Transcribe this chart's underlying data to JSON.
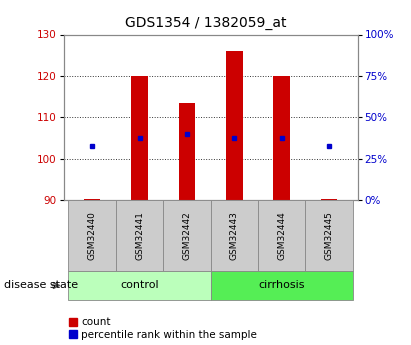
{
  "title": "GDS1354 / 1382059_at",
  "samples": [
    "GSM32440",
    "GSM32441",
    "GSM32442",
    "GSM32443",
    "GSM32444",
    "GSM32445"
  ],
  "bar_values": [
    90.3,
    120.0,
    113.5,
    126.0,
    120.0,
    90.3
  ],
  "bar_bottom": 90,
  "blue_marker_values": [
    103.0,
    105.0,
    106.0,
    105.0,
    105.0,
    103.0
  ],
  "bar_color": "#cc0000",
  "blue_color": "#0000cc",
  "ylim_left": [
    90,
    130
  ],
  "ylim_right": [
    0,
    100
  ],
  "yticks_left": [
    90,
    100,
    110,
    120,
    130
  ],
  "yticks_right": [
    0,
    25,
    50,
    75,
    100
  ],
  "ytick_labels_right": [
    "0%",
    "25%",
    "50%",
    "75%",
    "100%"
  ],
  "groups": [
    {
      "label": "control",
      "indices": [
        0,
        1,
        2
      ],
      "color": "#bbffbb"
    },
    {
      "label": "cirrhosis",
      "indices": [
        3,
        4,
        5
      ],
      "color": "#55ee55"
    }
  ],
  "disease_state_label": "disease state",
  "legend_items": [
    {
      "label": "count",
      "color": "#cc0000"
    },
    {
      "label": "percentile rank within the sample",
      "color": "#0000cc"
    }
  ],
  "grid_color": "#000000",
  "bg_color": "#ffffff",
  "plot_bg_color": "#ffffff",
  "tick_label_color_left": "#cc0000",
  "tick_label_color_right": "#0000cc",
  "sample_box_color": "#cccccc",
  "bar_width": 0.35
}
